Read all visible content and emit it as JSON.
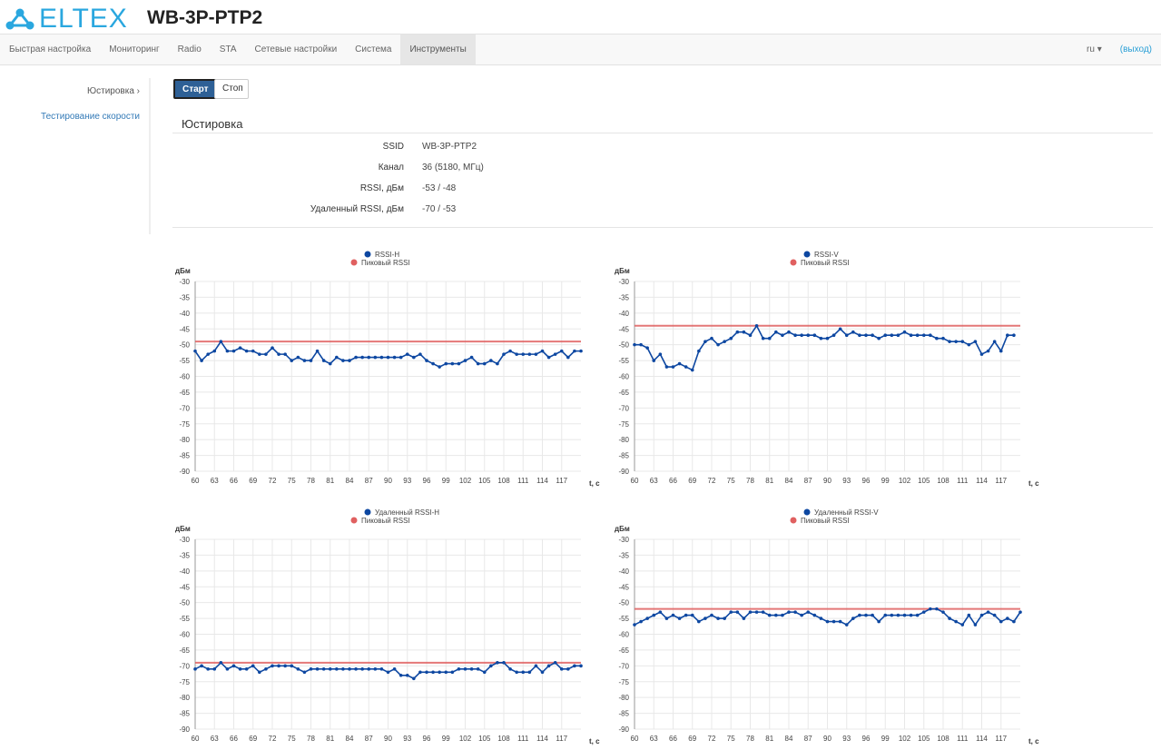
{
  "header": {
    "logo": "ELTEX",
    "device": "WB-3P-PTP2"
  },
  "nav": {
    "items": [
      "Быстрая настройка",
      "Мониторинг",
      "Radio",
      "STA",
      "Сетевые настройки",
      "Система",
      "Инструменты"
    ],
    "active": "Инструменты",
    "lang": "ru",
    "logout": "(выход)"
  },
  "sidebar": {
    "items": [
      "Юстировка ›",
      "Тестирование скорости"
    ]
  },
  "buttons": {
    "start": "Старт",
    "stop": "Стоп"
  },
  "section": {
    "title": "Юстировка",
    "rows": [
      {
        "k": "SSID",
        "v": "WB-3P-PTP2"
      },
      {
        "k": "Канал",
        "v": "36 (5180, МГц)"
      },
      {
        "k": "RSSI, дБм",
        "v": "-53 / -48"
      },
      {
        "k": "Удаленный RSSI, дБм",
        "v": "-70 / -53"
      }
    ]
  },
  "colors": {
    "series": "#0d47a1",
    "peak": "#e06060"
  },
  "chart_data": [
    {
      "type": "line",
      "legend": [
        "RSSI-H",
        "Пиковый RSSI"
      ],
      "ylabel": "дБм",
      "xlabel": "t, c",
      "ylim": [
        -90,
        -30
      ],
      "xlim": [
        60,
        120
      ],
      "x_start": 60,
      "xticks": [
        60,
        63,
        66,
        69,
        72,
        75,
        78,
        81,
        84,
        87,
        90,
        93,
        96,
        99,
        102,
        105,
        108,
        111,
        114,
        117
      ],
      "yticks": [
        -30,
        -35,
        -40,
        -45,
        -50,
        -55,
        -60,
        -65,
        -70,
        -75,
        -80,
        -85,
        -90
      ],
      "peak": -49,
      "values": [
        -52,
        -55,
        -53,
        -52,
        -49,
        -52,
        -52,
        -51,
        -52,
        -52,
        -53,
        -53,
        -51,
        -53,
        -53,
        -55,
        -54,
        -55,
        -55,
        -52,
        -55,
        -56,
        -54,
        -55,
        -55,
        -54,
        -54,
        -54,
        -54,
        -54,
        -54,
        -54,
        -54,
        -53,
        -54,
        -53,
        -55,
        -56,
        -57,
        -56,
        -56,
        -56,
        -55,
        -54,
        -56,
        -56,
        -55,
        -56,
        -53,
        -52,
        -53,
        -53,
        -53,
        -53,
        -52,
        -54,
        -53,
        -52,
        -54,
        -52,
        -52
      ]
    },
    {
      "type": "line",
      "legend": [
        "RSSI-V",
        "Пиковый RSSI"
      ],
      "ylabel": "дБм",
      "xlabel": "t, c",
      "ylim": [
        -90,
        -30
      ],
      "xlim": [
        60,
        120
      ],
      "x_start": 60,
      "xticks": [
        60,
        63,
        66,
        69,
        72,
        75,
        78,
        81,
        84,
        87,
        90,
        93,
        96,
        99,
        102,
        105,
        108,
        111,
        114,
        117
      ],
      "yticks": [
        -30,
        -35,
        -40,
        -45,
        -50,
        -55,
        -60,
        -65,
        -70,
        -75,
        -80,
        -85,
        -90
      ],
      "peak": -44,
      "values": [
        -50,
        -50,
        -51,
        -55,
        -53,
        -57,
        -57,
        -56,
        -57,
        -58,
        -52,
        -49,
        -48,
        -50,
        -49,
        -48,
        -46,
        -46,
        -47,
        -44,
        -48,
        -48,
        -46,
        -47,
        -46,
        -47,
        -47,
        -47,
        -47,
        -48,
        -48,
        -47,
        -45,
        -47,
        -46,
        -47,
        -47,
        -47,
        -48,
        -47,
        -47,
        -47,
        -46,
        -47,
        -47,
        -47,
        -47,
        -48,
        -48,
        -49,
        -49,
        -49,
        -50,
        -49,
        -53,
        -52,
        -49,
        -52,
        -47,
        -47
      ]
    },
    {
      "type": "line",
      "legend": [
        "Удаленный RSSI-H",
        "Пиковый RSSI"
      ],
      "ylabel": "дБм",
      "xlabel": "t, c",
      "ylim": [
        -90,
        -30
      ],
      "xlim": [
        60,
        120
      ],
      "x_start": 60,
      "xticks": [
        60,
        63,
        66,
        69,
        72,
        75,
        78,
        81,
        84,
        87,
        90,
        93,
        96,
        99,
        102,
        105,
        108,
        111,
        114,
        117
      ],
      "yticks": [
        -30,
        -35,
        -40,
        -45,
        -50,
        -55,
        -60,
        -65,
        -70,
        -75,
        -80,
        -85,
        -90
      ],
      "peak": -69,
      "values": [
        -71,
        -70,
        -71,
        -71,
        -69,
        -71,
        -70,
        -71,
        -71,
        -70,
        -72,
        -71,
        -70,
        -70,
        -70,
        -70,
        -71,
        -72,
        -71,
        -71,
        -71,
        -71,
        -71,
        -71,
        -71,
        -71,
        -71,
        -71,
        -71,
        -71,
        -72,
        -71,
        -73,
        -73,
        -74,
        -72,
        -72,
        -72,
        -72,
        -72,
        -72,
        -71,
        -71,
        -71,
        -71,
        -72,
        -70,
        -69,
        -69,
        -71,
        -72,
        -72,
        -72,
        -70,
        -72,
        -70,
        -69,
        -71,
        -71,
        -70,
        -70
      ]
    },
    {
      "type": "line",
      "legend": [
        "Удаленный RSSI-V",
        "Пиковый RSSI"
      ],
      "ylabel": "дБм",
      "xlabel": "t, c",
      "ylim": [
        -90,
        -30
      ],
      "xlim": [
        60,
        120
      ],
      "x_start": 60,
      "xticks": [
        60,
        63,
        66,
        69,
        72,
        75,
        78,
        81,
        84,
        87,
        90,
        93,
        96,
        99,
        102,
        105,
        108,
        111,
        114,
        117
      ],
      "yticks": [
        -30,
        -35,
        -40,
        -45,
        -50,
        -55,
        -60,
        -65,
        -70,
        -75,
        -80,
        -85,
        -90
      ],
      "peak": -52,
      "values": [
        -57,
        -56,
        -55,
        -54,
        -53,
        -55,
        -54,
        -55,
        -54,
        -54,
        -56,
        -55,
        -54,
        -55,
        -55,
        -53,
        -53,
        -55,
        -53,
        -53,
        -53,
        -54,
        -54,
        -54,
        -53,
        -53,
        -54,
        -53,
        -54,
        -55,
        -56,
        -56,
        -56,
        -57,
        -55,
        -54,
        -54,
        -54,
        -56,
        -54,
        -54,
        -54,
        -54,
        -54,
        -54,
        -53,
        -52,
        -52,
        -53,
        -55,
        -56,
        -57,
        -54,
        -57,
        -54,
        -53,
        -54,
        -56,
        -55,
        -56,
        -53
      ]
    }
  ]
}
